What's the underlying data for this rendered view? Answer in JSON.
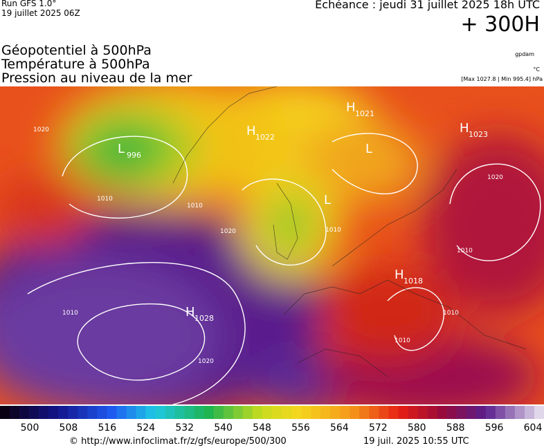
{
  "header": {
    "run": "Run GFS 1.0°",
    "run_date": "19 juillet 2025 06Z",
    "forecast": "Echéance : jeudi 31 juillet 2025 18h UTC",
    "lead": "+ 300H",
    "fields": [
      "Géopotentiel à 500hPa",
      "Température à 500hPa",
      "Pression au niveau de la mer"
    ],
    "units": [
      "gpdam",
      "°C",
      "[Max 1027.8 | Min 995.4] hPa"
    ]
  },
  "map": {
    "centers": [
      {
        "letter": "H",
        "value": "1028"
      },
      {
        "letter": "H",
        "value": "1023"
      },
      {
        "letter": "H",
        "value": "1018"
      },
      {
        "letter": "H",
        "value": "1021"
      },
      {
        "letter": "H",
        "value": "1022"
      },
      {
        "letter": "L",
        "value": "996"
      },
      {
        "letter": "L",
        "value": ""
      },
      {
        "letter": "L",
        "value": ""
      }
    ],
    "isobar_labels": [
      "1010",
      "1020",
      "1020",
      "1010",
      "1020",
      "1010",
      "1010",
      "1020",
      "1010",
      "1010",
      "1010"
    ]
  },
  "colorbar": {
    "labels": [
      500,
      508,
      516,
      524,
      532,
      540,
      548,
      556,
      564,
      572,
      580,
      588,
      596,
      604
    ]
  },
  "footer": {
    "source": "© http://www.infoclimat.fr/z/gfs/europe/500/300",
    "timestamp": "19 juil. 2025 10:55 UTC"
  }
}
